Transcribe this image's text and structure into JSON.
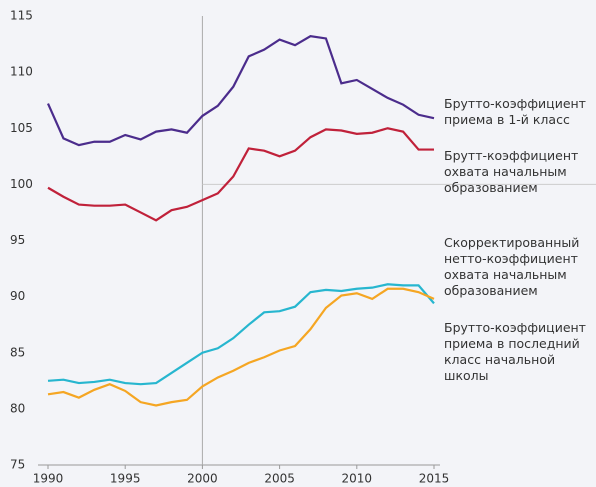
{
  "chart_data": {
    "type": "line",
    "x": [
      1990,
      1991,
      1992,
      1993,
      1994,
      1995,
      1996,
      1997,
      1998,
      1999,
      2000,
      2001,
      2002,
      2003,
      2004,
      2005,
      2006,
      2007,
      2008,
      2009,
      2010,
      2011,
      2012,
      2013,
      2014,
      2015
    ],
    "series": [
      {
        "name": "Брутто-коэффициент\nприема в 1-й класс",
        "color": "#4b2c8c",
        "values": [
          107.2,
          104.1,
          103.5,
          103.8,
          103.8,
          104.4,
          104.0,
          104.7,
          104.9,
          104.6,
          106.1,
          107.0,
          108.7,
          111.4,
          112.0,
          112.9,
          112.4,
          113.2,
          113.0,
          109.0,
          109.3,
          108.5,
          107.7,
          107.1,
          106.2,
          105.9
        ]
      },
      {
        "name": "Брутт-коэффициент\nохвата начальным\nобразованием",
        "color": "#c0213a",
        "values": [
          99.7,
          98.9,
          98.2,
          98.1,
          98.1,
          98.2,
          97.5,
          96.8,
          97.7,
          98.0,
          98.6,
          99.2,
          100.7,
          103.2,
          103.0,
          102.5,
          103.0,
          104.2,
          104.9,
          104.8,
          104.5,
          104.6,
          105.0,
          104.7,
          103.1,
          103.1
        ]
      },
      {
        "name": "Скорректированный\nнетто-коэффициент\nохвата начальным\nобразованием",
        "color": "#27b6cf",
        "values": [
          82.5,
          82.6,
          82.3,
          82.4,
          82.6,
          82.3,
          82.2,
          82.3,
          83.2,
          84.1,
          85.0,
          85.4,
          86.3,
          87.5,
          88.6,
          88.7,
          89.1,
          90.4,
          90.6,
          90.5,
          90.7,
          90.8,
          91.1,
          91.0,
          91.0,
          89.4
        ]
      },
      {
        "name": "Брутто-коэффициент\nприема в последний\nкласс начальной\nшколы",
        "color": "#f5a623",
        "values": [
          81.3,
          81.5,
          81.0,
          81.7,
          82.2,
          81.6,
          80.6,
          80.3,
          80.6,
          80.8,
          82.0,
          82.8,
          83.4,
          84.1,
          84.6,
          85.2,
          85.6,
          87.1,
          89.0,
          90.1,
          90.3,
          89.8,
          90.7,
          90.7,
          90.4,
          89.8
        ]
      }
    ],
    "xlim": [
      1990,
      2015
    ],
    "xticks": [
      1990,
      1995,
      2000,
      2005,
      2010,
      2015
    ],
    "ylim": [
      75,
      115
    ],
    "yticks": [
      75,
      80,
      85,
      90,
      95,
      100,
      105,
      110,
      115
    ],
    "reference_lines": {
      "x": 2000,
      "y": 100
    }
  }
}
